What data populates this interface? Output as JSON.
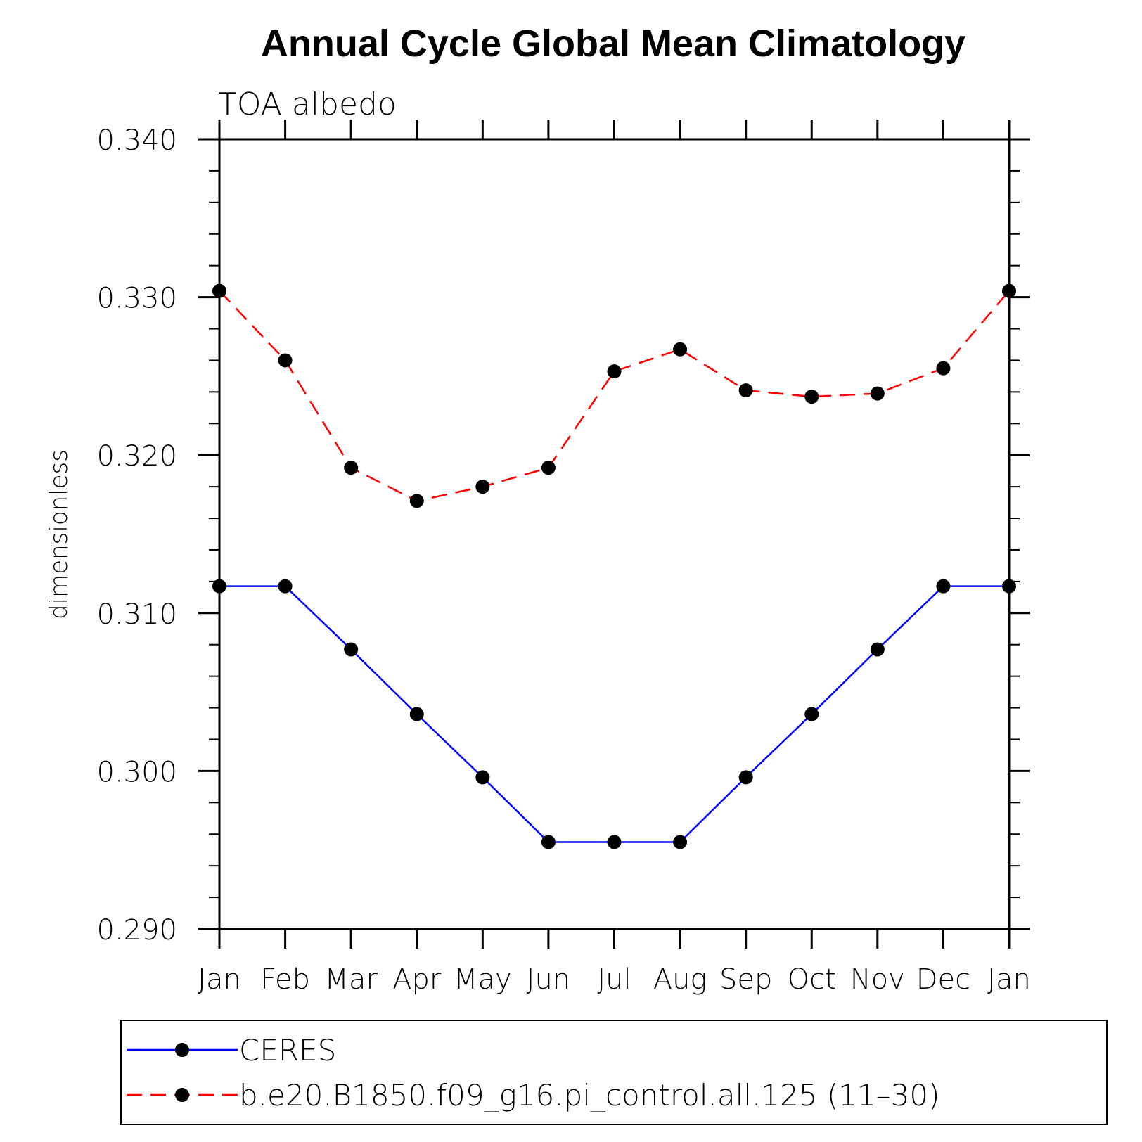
{
  "chart_data": {
    "type": "line",
    "title": "Annual Cycle Global Mean Climatology",
    "subtitle": "TOA albedo",
    "xlabel": "",
    "ylabel": "dimensionless",
    "categories": [
      "Jan",
      "Feb",
      "Mar",
      "Apr",
      "May",
      "Jun",
      "Jul",
      "Aug",
      "Sep",
      "Oct",
      "Nov",
      "Dec",
      "Jan"
    ],
    "ylim": [
      0.29,
      0.34
    ],
    "yticks": [
      "0.290",
      "0.300",
      "0.310",
      "0.320",
      "0.330",
      "0.340"
    ],
    "ytick_values": [
      0.29,
      0.3,
      0.31,
      0.32,
      0.33,
      0.34
    ],
    "series": [
      {
        "name": "CERES",
        "color": "#0000ff",
        "dash": "solid",
        "values": [
          0.3117,
          0.3117,
          0.3077,
          0.3036,
          0.2996,
          0.2955,
          0.2955,
          0.2955,
          0.2996,
          0.3036,
          0.3077,
          0.3117,
          0.3117
        ]
      },
      {
        "name": "b.e20.B1850.f09_g16.pi_control.all.125 (11–30)",
        "color": "#ff0000",
        "dash": "dashed",
        "values": [
          0.3304,
          0.326,
          0.3192,
          0.3171,
          0.318,
          0.3192,
          0.3253,
          0.3267,
          0.3241,
          0.3237,
          0.3239,
          0.3255,
          0.3304
        ]
      }
    ],
    "marker_color": "#000000",
    "legend_placement": "bottom"
  }
}
